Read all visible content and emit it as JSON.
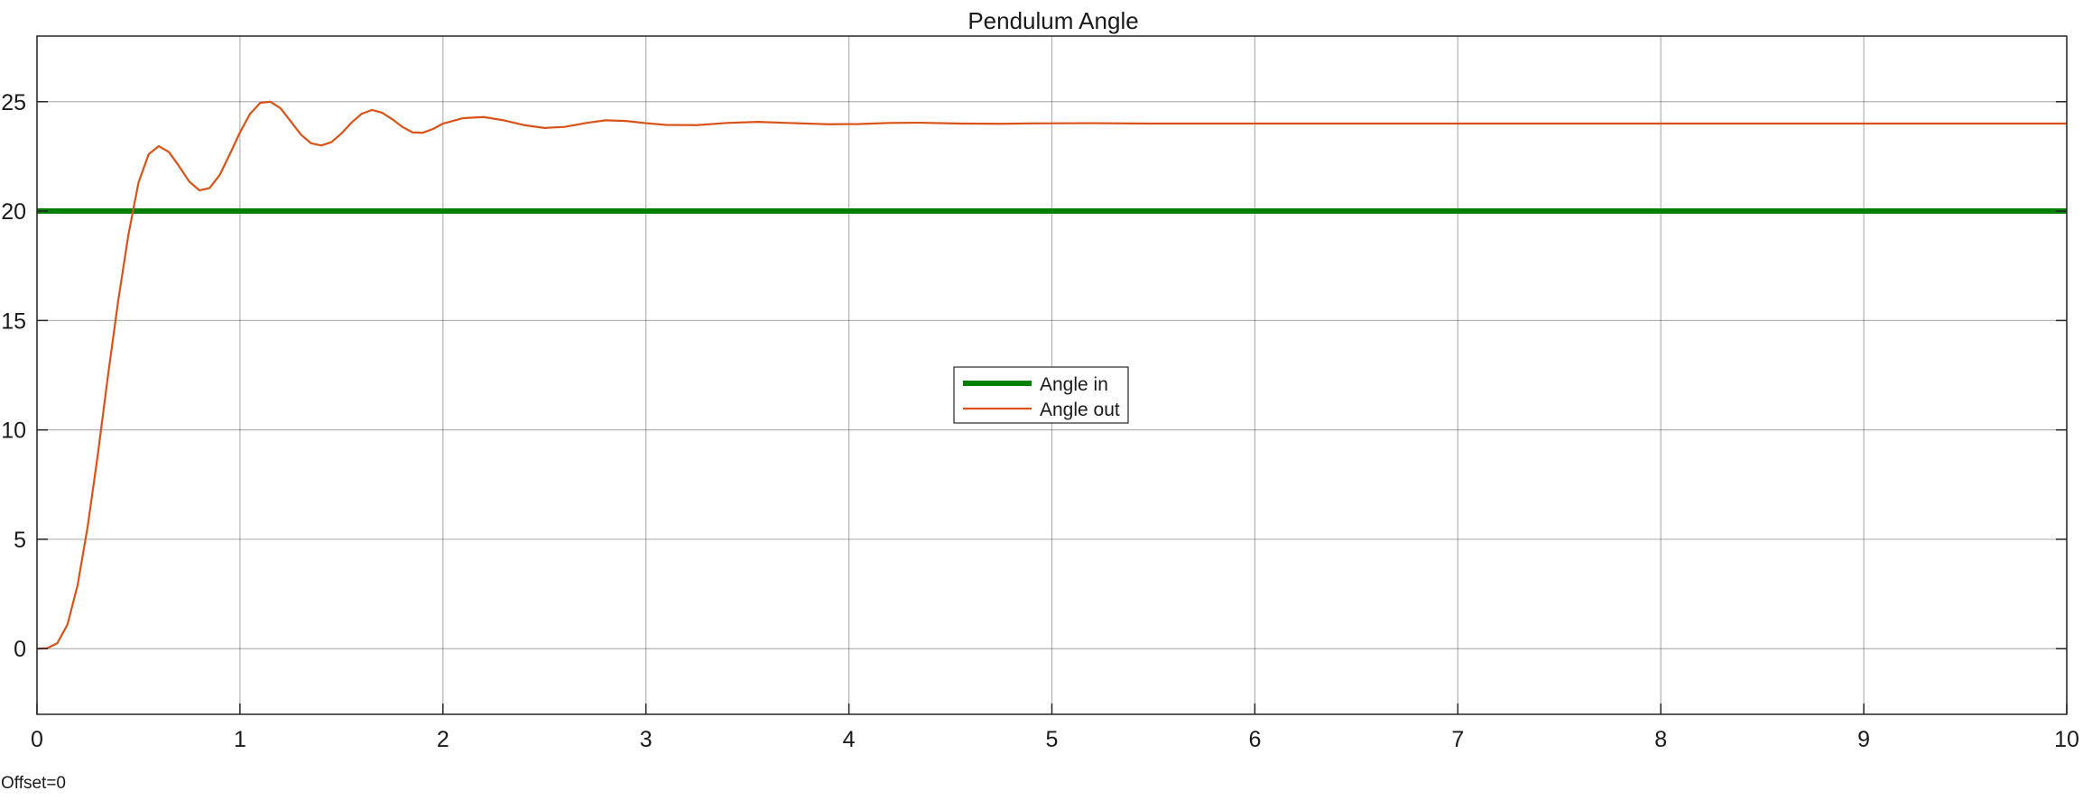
{
  "chart_data": {
    "type": "line",
    "title": "Pendulum Angle",
    "xlabel": "",
    "ylabel": "",
    "xlim": [
      0,
      10
    ],
    "ylim": [
      -3,
      28
    ],
    "xticks": [
      "0",
      "1",
      "2",
      "3",
      "4",
      "5",
      "6",
      "7",
      "8",
      "9",
      "10"
    ],
    "yticks": [
      "0",
      "5",
      "10",
      "15",
      "20",
      "25"
    ],
    "grid": true,
    "legend_placement": "center",
    "series": [
      {
        "name": "Angle in",
        "color": "#007f00",
        "x": [
          0,
          10
        ],
        "y": [
          20,
          20
        ]
      },
      {
        "name": "Angle out",
        "color": "#d95319",
        "x": [
          0,
          0.05,
          0.1,
          0.15,
          0.2,
          0.25,
          0.3,
          0.35,
          0.4,
          0.45,
          0.5,
          0.55,
          0.6,
          0.65,
          0.7,
          0.75,
          0.8,
          0.85,
          0.9,
          0.95,
          1.0,
          1.05,
          1.1,
          1.15,
          1.2,
          1.25,
          1.3,
          1.35,
          1.4,
          1.45,
          1.5,
          1.55,
          1.6,
          1.65,
          1.7,
          1.75,
          1.8,
          1.85,
          1.9,
          1.95,
          2.0,
          2.1,
          2.2,
          2.3,
          2.4,
          2.5,
          2.6,
          2.7,
          2.8,
          2.9,
          3.0,
          3.1,
          3.25,
          3.4,
          3.55,
          3.7,
          3.9,
          4.05,
          4.2,
          4.35,
          4.55,
          4.75,
          4.9,
          5.2,
          5.5,
          6.0,
          7.0,
          8.0,
          9.0,
          10.0
        ],
        "y": [
          0,
          0.02,
          0.25,
          1.1,
          2.9,
          5.6,
          8.9,
          12.5,
          15.9,
          18.9,
          21.3,
          22.6,
          22.97,
          22.7,
          22.05,
          21.35,
          20.95,
          21.05,
          21.65,
          22.6,
          23.6,
          24.45,
          24.95,
          25.0,
          24.7,
          24.1,
          23.5,
          23.1,
          23.0,
          23.15,
          23.55,
          24.05,
          24.45,
          24.62,
          24.5,
          24.2,
          23.85,
          23.6,
          23.58,
          23.75,
          24.0,
          24.25,
          24.3,
          24.15,
          23.93,
          23.8,
          23.85,
          24.02,
          24.15,
          24.12,
          24.02,
          23.94,
          23.93,
          24.03,
          24.08,
          24.03,
          23.97,
          23.98,
          24.03,
          24.04,
          24.0,
          23.99,
          24.01,
          24.02,
          24.0,
          24.0,
          24.0,
          24.0,
          24.0,
          24.0
        ]
      }
    ]
  },
  "footer": {
    "offset_text": "Offset=0"
  }
}
